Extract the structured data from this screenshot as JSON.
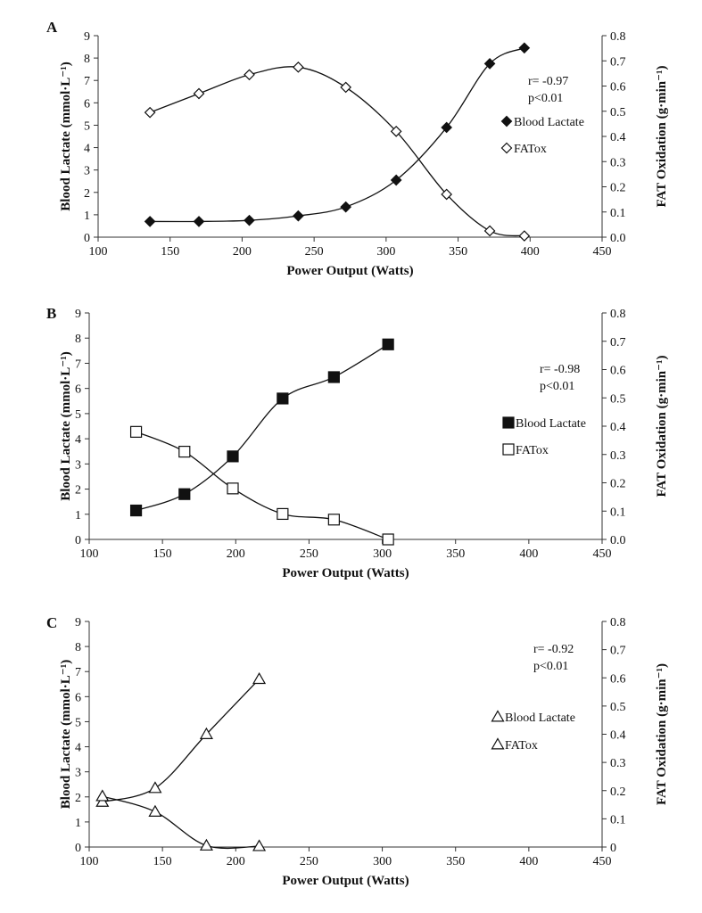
{
  "chart_data": [
    {
      "type": "line",
      "panel": "A",
      "xlabel": "Power Output (Watts)",
      "ylabel": "Blood Lactate (mmol·L⁻¹)",
      "y2label": "FAT Oxidation (g·min⁻¹)",
      "xlim": [
        100,
        450
      ],
      "ylim": [
        0,
        9
      ],
      "y2lim": [
        0,
        0.8
      ],
      "xticks": [
        100,
        150,
        200,
        250,
        300,
        350,
        400,
        450
      ],
      "yticks": [
        0,
        1,
        2,
        3,
        4,
        5,
        6,
        7,
        8,
        9
      ],
      "y2ticks": [
        0.0,
        0.1,
        0.2,
        0.3,
        0.4,
        0.5,
        0.6,
        0.7,
        0.8
      ],
      "stats": [
        "r= -0.97",
        "p<0.01"
      ],
      "legend_position": "right",
      "series": [
        {
          "name": "Blood Lactate",
          "axis": "left",
          "marker": "diamond",
          "filled": true,
          "x": [
            136,
            170,
            205,
            239,
            272,
            307,
            342,
            372,
            396
          ],
          "y": [
            0.7,
            0.7,
            0.75,
            0.95,
            1.35,
            2.55,
            4.9,
            7.75,
            8.45
          ]
        },
        {
          "name": "FATox",
          "axis": "right",
          "marker": "diamond",
          "filled": false,
          "x": [
            136,
            170,
            205,
            239,
            272,
            307,
            342,
            372,
            396
          ],
          "y": [
            0.495,
            0.57,
            0.645,
            0.675,
            0.595,
            0.42,
            0.17,
            0.025,
            0.005
          ]
        }
      ]
    },
    {
      "type": "line",
      "panel": "B",
      "xlabel": "Power Output (Watts)",
      "ylabel": "Blood Lactate (mmol·L⁻¹)",
      "y2label": "FAT Oxidation (g·min⁻¹)",
      "xlim": [
        100,
        450
      ],
      "ylim": [
        0,
        9
      ],
      "y2lim": [
        0,
        0.8
      ],
      "xticks": [
        100,
        150,
        200,
        250,
        300,
        350,
        400,
        450
      ],
      "yticks": [
        0,
        1,
        2,
        3,
        4,
        5,
        6,
        7,
        8,
        9
      ],
      "y2ticks": [
        0.0,
        0.1,
        0.2,
        0.3,
        0.4,
        0.5,
        0.6,
        0.7,
        0.8
      ],
      "stats": [
        "r= -0.98",
        "p<0.01"
      ],
      "legend_position": "right",
      "series": [
        {
          "name": "Blood Lactate",
          "axis": "left",
          "marker": "square",
          "filled": true,
          "x": [
            132,
            165,
            198,
            232,
            267,
            304
          ],
          "y": [
            1.15,
            1.8,
            3.3,
            5.6,
            6.45,
            7.75
          ]
        },
        {
          "name": "FATox",
          "axis": "right",
          "marker": "square",
          "filled": false,
          "x": [
            132,
            165,
            198,
            232,
            267,
            304
          ],
          "y": [
            0.38,
            0.31,
            0.18,
            0.09,
            0.07,
            0.0
          ]
        }
      ]
    },
    {
      "type": "line",
      "panel": "C",
      "xlabel": "Power Output (Watts)",
      "ylabel": "Blood Lactate (mmol·L⁻¹)",
      "y2label": "FAT Oxidation (g·min⁻¹)",
      "xlim": [
        100,
        450
      ],
      "ylim": [
        0,
        9
      ],
      "y2lim": [
        0,
        0.8
      ],
      "xticks": [
        100,
        150,
        200,
        250,
        300,
        350,
        400,
        450
      ],
      "yticks": [
        0,
        1,
        2,
        3,
        4,
        5,
        6,
        7,
        8,
        9
      ],
      "y2ticks": [
        0,
        0.1,
        0.2,
        0.3,
        0.4,
        0.5,
        0.6,
        0.7,
        0.8
      ],
      "stats": [
        "r= -0.92",
        "p<0.01"
      ],
      "legend_position": "right",
      "series": [
        {
          "name": "Blood Lactate",
          "axis": "left",
          "marker": "triangle",
          "filled": false,
          "x": [
            109,
            145,
            180,
            216
          ],
          "y": [
            1.8,
            2.35,
            4.5,
            6.7
          ]
        },
        {
          "name": "FATox",
          "axis": "right",
          "marker": "triangle",
          "filled": false,
          "x": [
            109,
            145,
            180,
            216
          ],
          "y": [
            0.18,
            0.125,
            0.005,
            0.003
          ]
        }
      ]
    }
  ]
}
